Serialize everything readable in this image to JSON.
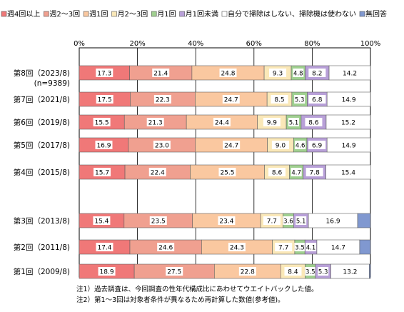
{
  "chart_data": {
    "type": "bar",
    "orientation": "horizontal",
    "stacked": true,
    "percent_stacked": true,
    "legend_position": "top",
    "grid": "vertical",
    "xlim": [
      0,
      100
    ],
    "x_ticks": [
      "0%",
      "20%",
      "40%",
      "60%",
      "80%",
      "100%"
    ],
    "categories": [
      [
        "第8回（2023/8)",
        "(n=9389)"
      ],
      [
        "第7回（2021/8)"
      ],
      [
        "第6回（2019/8)"
      ],
      [
        "第5回（2017/8)"
      ],
      [
        "第4回（2015/8)"
      ],
      [
        "第3回（2013/8)"
      ],
      [
        "第2回（2011/8)"
      ],
      [
        "第1回（2009/8)"
      ]
    ],
    "series": [
      {
        "name": "週4回以上",
        "color": "#f07878",
        "values": [
          17.3,
          17.5,
          15.5,
          16.9,
          15.7,
          15.4,
          17.4,
          18.9
        ]
      },
      {
        "name": "週2～3回",
        "color": "#f0a090",
        "values": [
          21.4,
          22.3,
          21.3,
          23.0,
          22.4,
          23.5,
          24.6,
          27.5
        ]
      },
      {
        "name": "週1回",
        "color": "#fac8a0",
        "values": [
          24.8,
          24.7,
          24.4,
          24.7,
          25.5,
          23.4,
          24.3,
          22.8
        ]
      },
      {
        "name": "月2～3回",
        "color": "#fae8b8",
        "values": [
          9.3,
          8.5,
          9.9,
          9.0,
          8.6,
          7.7,
          7.7,
          8.4
        ]
      },
      {
        "name": "月1回",
        "color": "#a0d090",
        "values": [
          4.8,
          5.3,
          5.1,
          4.6,
          4.7,
          3.6,
          3.5,
          3.5
        ]
      },
      {
        "name": "月1回未満",
        "color": "#b8a0d8",
        "values": [
          8.2,
          6.8,
          8.6,
          6.9,
          7.8,
          5.1,
          4.1,
          5.3
        ]
      },
      {
        "name": "自分で掃除はしない、掃除機は使わない",
        "color": "#ffffff",
        "values": [
          14.2,
          14.9,
          15.2,
          14.9,
          15.4,
          16.9,
          14.7,
          13.2
        ]
      },
      {
        "name": "無回答",
        "color": "#8098d0",
        "values": [
          null,
          null,
          null,
          null,
          null,
          null,
          null,
          null
        ]
      }
    ]
  },
  "notes": [
    "注1）過去調査は、今回調査の性年代構成比にあわせてウエイトバックした値。",
    "注2）第1～3回は対象者条件が異なるため再計算した数値(参考値)。"
  ]
}
